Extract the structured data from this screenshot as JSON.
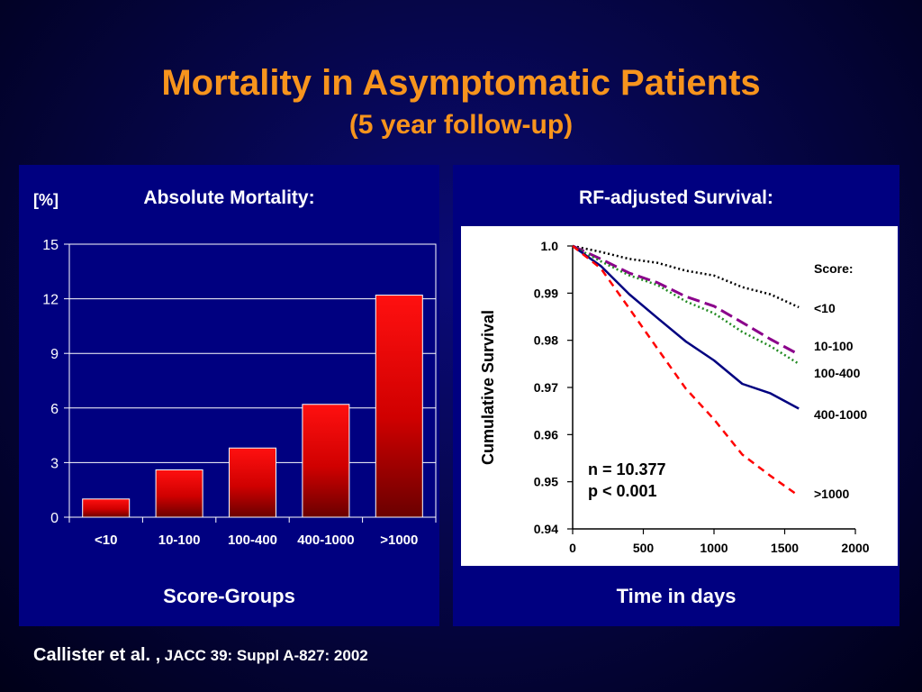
{
  "slide": {
    "title": "Mortality in Asymptomatic Patients",
    "subtitle": "(5 year follow-up)"
  },
  "left_panel": {
    "title": "Absolute Mortality:",
    "unit": "[%]",
    "xlabel": "Score-Groups"
  },
  "right_panel": {
    "title": "RF-adjusted Survival:",
    "ylabel": "Cumulative Survival",
    "xlabel": "Time in days",
    "legend_title": "Score:",
    "stats": {
      "n": "n = 10.377",
      "p": "p < 0.001"
    }
  },
  "citation": {
    "authors": "Callister et al. ,",
    "journal": "JACC 39: Suppl A-827: 2002"
  },
  "colors": {
    "title": "#f7941d",
    "panel": "#000080",
    "bar": "#ff0000",
    "curve_lt10": "#000000",
    "curve_10_100": "#8b008b",
    "curve_100_400": "#228b22",
    "curve_400_1000": "#000080",
    "curve_gt1000": "#ff0000"
  },
  "chart_data": [
    {
      "type": "bar",
      "categories": [
        "<10",
        "10-100",
        "100-400",
        "400-1000",
        ">1000"
      ],
      "values": [
        1.0,
        2.6,
        3.8,
        6.2,
        12.2
      ],
      "ylim": [
        0,
        15
      ],
      "yticks": [
        0,
        3,
        6,
        9,
        12,
        15
      ],
      "title": "Absolute Mortality:",
      "ylabel": "[%]",
      "xlabel": "Score-Groups",
      "grid": true
    },
    {
      "type": "line",
      "title": "RF-adjusted Survival:",
      "xlabel": "Time in days",
      "ylabel": "Cumulative Survival",
      "xlim": [
        0,
        2000
      ],
      "ylim": [
        0.94,
        1.0
      ],
      "xticks": [
        0,
        500,
        1000,
        1500,
        2000
      ],
      "yticks": [
        0.94,
        0.95,
        0.96,
        0.97,
        0.98,
        0.99,
        1.0
      ],
      "ytick_labels": [
        "0.94",
        "0.95",
        "0.96",
        "0.97",
        "0.98",
        "0.99",
        "1.0"
      ],
      "legend_title": "Score:",
      "series": [
        {
          "name": "<10",
          "style": "dotted",
          "color": "#000000",
          "x": [
            0,
            200,
            400,
            600,
            800,
            1000,
            1200,
            1400,
            1600
          ],
          "y": [
            1.0,
            0.9985,
            0.9975,
            0.9962,
            0.995,
            0.9935,
            0.9915,
            0.9895,
            0.987
          ]
        },
        {
          "name": "10-100",
          "style": "longdash",
          "color": "#8b008b",
          "x": [
            0,
            200,
            400,
            600,
            800,
            1000,
            1200,
            1400,
            1600
          ],
          "y": [
            1.0,
            0.997,
            0.9945,
            0.992,
            0.9895,
            0.987,
            0.984,
            0.98,
            0.977
          ]
        },
        {
          "name": "100-400",
          "style": "dotted",
          "color": "#228b22",
          "x": [
            0,
            200,
            400,
            600,
            800,
            1000,
            1200,
            1400,
            1600
          ],
          "y": [
            1.0,
            0.9965,
            0.994,
            0.9915,
            0.9885,
            0.9855,
            0.982,
            0.9785,
            0.975
          ]
        },
        {
          "name": "400-1000",
          "style": "solid",
          "color": "#000080",
          "x": [
            0,
            200,
            400,
            600,
            800,
            1000,
            1200,
            1400,
            1600
          ],
          "y": [
            1.0,
            0.9955,
            0.99,
            0.9845,
            0.98,
            0.9755,
            0.971,
            0.9685,
            0.9655
          ]
        },
        {
          "name": ">1000",
          "style": "dashed",
          "color": "#ff0000",
          "x": [
            0,
            200,
            400,
            600,
            800,
            1000,
            1200,
            1400,
            1600
          ],
          "y": [
            1.0,
            0.995,
            0.987,
            0.978,
            0.97,
            0.963,
            0.956,
            0.951,
            0.947
          ]
        }
      ]
    }
  ]
}
